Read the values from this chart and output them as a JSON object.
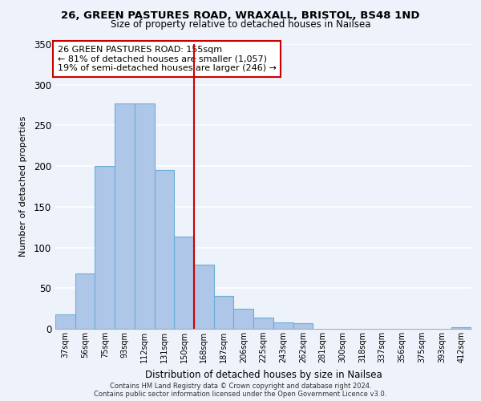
{
  "title": "26, GREEN PASTURES ROAD, WRAXALL, BRISTOL, BS48 1ND",
  "subtitle": "Size of property relative to detached houses in Nailsea",
  "xlabel": "Distribution of detached houses by size in Nailsea",
  "ylabel": "Number of detached properties",
  "bar_labels": [
    "37sqm",
    "56sqm",
    "75sqm",
    "93sqm",
    "112sqm",
    "131sqm",
    "150sqm",
    "168sqm",
    "187sqm",
    "206sqm",
    "225sqm",
    "243sqm",
    "262sqm",
    "281sqm",
    "300sqm",
    "318sqm",
    "337sqm",
    "356sqm",
    "375sqm",
    "393sqm",
    "412sqm"
  ],
  "bar_values": [
    18,
    68,
    200,
    277,
    277,
    195,
    113,
    79,
    40,
    25,
    14,
    8,
    7,
    0,
    0,
    0,
    0,
    0,
    0,
    0,
    2
  ],
  "bar_color": "#aec6e8",
  "bar_edge_color": "#6baed6",
  "vline_x": 6.5,
  "vline_color": "#cc0000",
  "annotation_title": "26 GREEN PASTURES ROAD: 155sqm",
  "annotation_line1": "← 81% of detached houses are smaller (1,057)",
  "annotation_line2": "19% of semi-detached houses are larger (246) →",
  "annotation_box_color": "#ffffff",
  "annotation_box_edge": "#cc0000",
  "ylim": [
    0,
    350
  ],
  "yticks": [
    0,
    50,
    100,
    150,
    200,
    250,
    300,
    350
  ],
  "footer1": "Contains HM Land Registry data © Crown copyright and database right 2024.",
  "footer2": "Contains public sector information licensed under the Open Government Licence v3.0.",
  "bg_color": "#eef2fa"
}
